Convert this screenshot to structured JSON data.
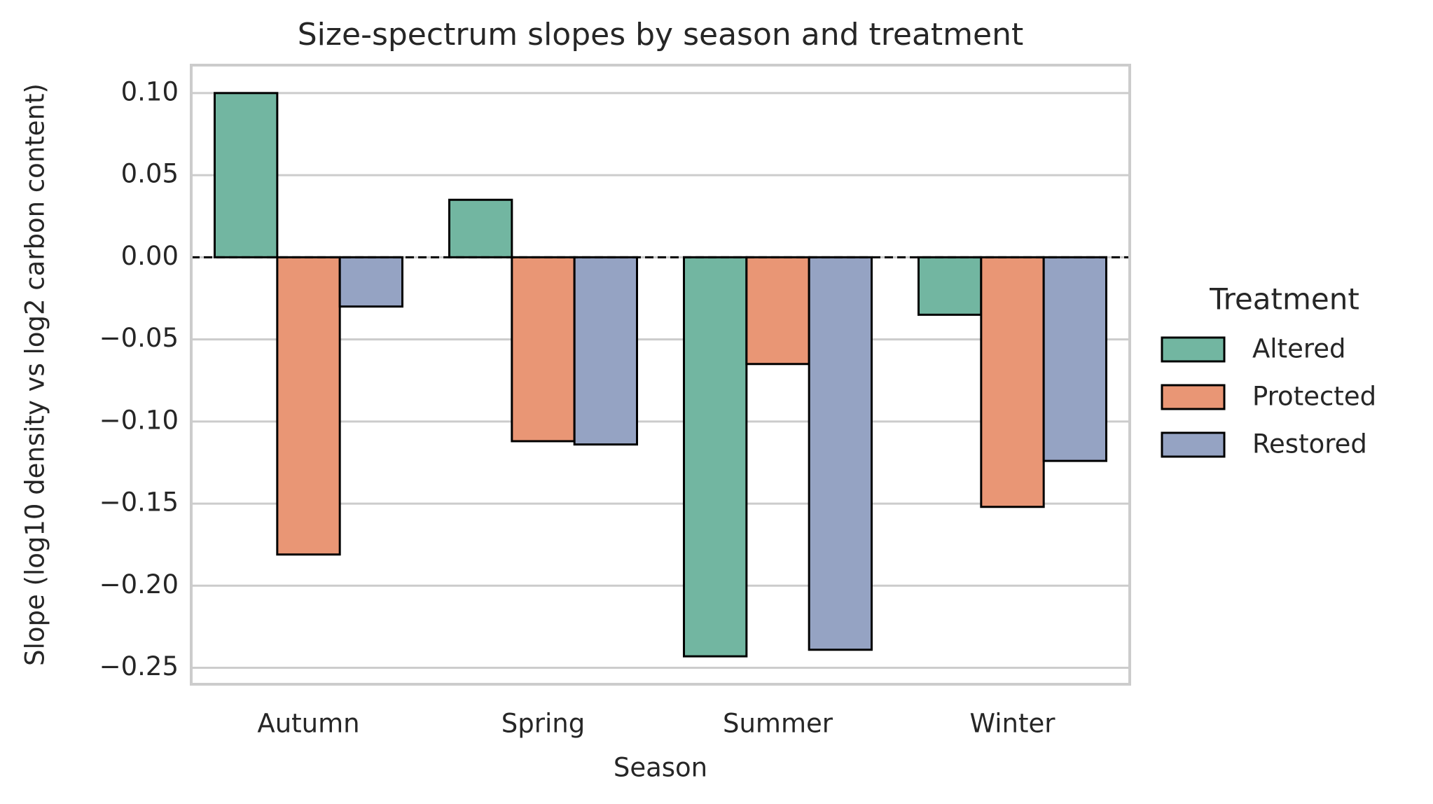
{
  "chart_data": {
    "type": "bar",
    "title": "Size-spectrum slopes by season and treatment",
    "x_label": "Season",
    "y_label": "Slope (log10 density vs log2 carbon content)",
    "categories": [
      "Autumn",
      "Spring",
      "Summer",
      "Winter"
    ],
    "legend_title": "Treatment",
    "legend_position": "right",
    "series": [
      {
        "name": "Altered",
        "color": "#72b6a1",
        "values": [
          0.1,
          0.035,
          -0.243,
          -0.035
        ]
      },
      {
        "name": "Protected",
        "color": "#e99675",
        "values": [
          -0.181,
          -0.112,
          -0.065,
          -0.152
        ]
      },
      {
        "name": "Restored",
        "color": "#95a3c3",
        "values": [
          -0.03,
          -0.114,
          -0.239,
          -0.124
        ]
      }
    ],
    "ylim": [
      -0.26,
      0.117
    ],
    "yticks": [
      {
        "value": 0.1,
        "label": "0.10"
      },
      {
        "value": 0.05,
        "label": "0.05"
      },
      {
        "value": 0,
        "label": "0.00"
      },
      {
        "value": -0.05,
        "label": "−0.05"
      },
      {
        "value": -0.1,
        "label": "−0.10"
      },
      {
        "value": -0.15,
        "label": "−0.15"
      },
      {
        "value": -0.2,
        "label": "−0.20"
      },
      {
        "value": -0.25,
        "label": "−0.25"
      }
    ],
    "reference_line": 0,
    "grid": true
  }
}
